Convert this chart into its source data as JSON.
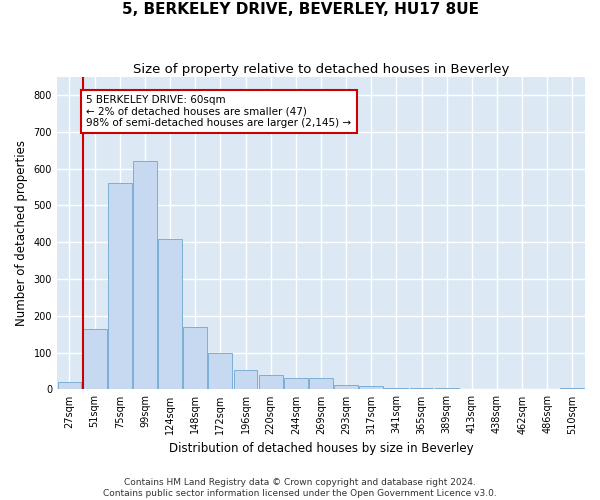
{
  "title": "5, BERKELEY DRIVE, BEVERLEY, HU17 8UE",
  "subtitle": "Size of property relative to detached houses in Beverley",
  "xlabel": "Distribution of detached houses by size in Beverley",
  "ylabel": "Number of detached properties",
  "footnote1": "Contains HM Land Registry data © Crown copyright and database right 2024.",
  "footnote2": "Contains public sector information licensed under the Open Government Licence v3.0.",
  "annotation_line1": "5 BERKELEY DRIVE: 60sqm",
  "annotation_line2": "← 2% of detached houses are smaller (47)",
  "annotation_line3": "98% of semi-detached houses are larger (2,145) →",
  "bin_labels": [
    "27sqm",
    "51sqm",
    "75sqm",
    "99sqm",
    "124sqm",
    "148sqm",
    "172sqm",
    "196sqm",
    "220sqm",
    "244sqm",
    "269sqm",
    "293sqm",
    "317sqm",
    "341sqm",
    "365sqm",
    "389sqm",
    "413sqm",
    "438sqm",
    "462sqm",
    "486sqm",
    "510sqm"
  ],
  "bar_heights": [
    20,
    165,
    560,
    620,
    410,
    170,
    100,
    52,
    40,
    30,
    30,
    12,
    8,
    5,
    3,
    3,
    0,
    0,
    0,
    0,
    5
  ],
  "bar_color": "#c6d9f0",
  "bar_edge_color": "#7bafd4",
  "marker_color": "#cc0000",
  "ylim": [
    0,
    850
  ],
  "yticks": [
    0,
    100,
    200,
    300,
    400,
    500,
    600,
    700,
    800
  ],
  "annotation_box_color": "#cc0000",
  "bg_color": "#dce9f5",
  "grid_color": "#ffffff",
  "fig_bg_color": "#ffffff",
  "title_fontsize": 11,
  "subtitle_fontsize": 9.5,
  "axis_label_fontsize": 8.5,
  "tick_fontsize": 7,
  "footnote_fontsize": 6.5,
  "annotation_fontsize": 7.5
}
